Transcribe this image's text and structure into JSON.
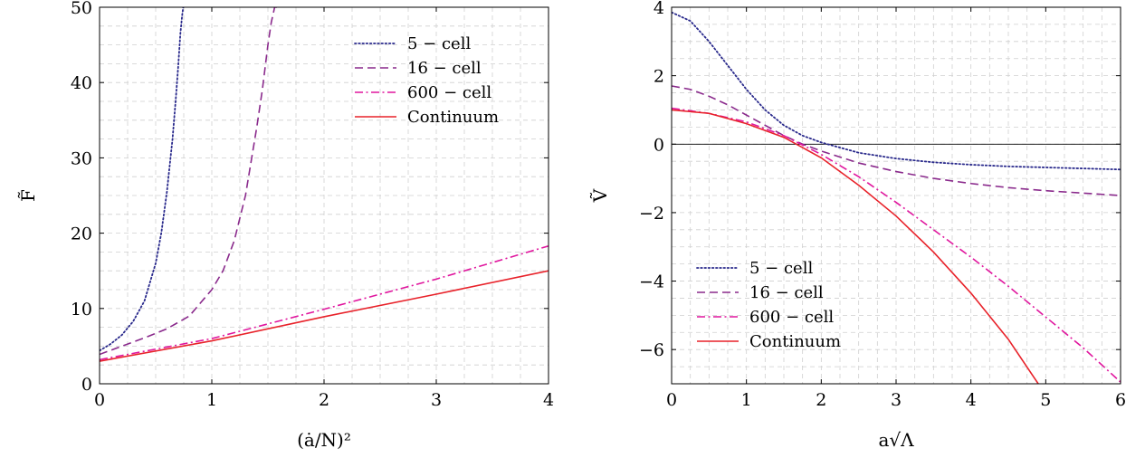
{
  "chart_data": [
    {
      "type": "line",
      "title": "",
      "xlabel": "(ȧ/N)²",
      "ylabel": "F̃",
      "xlim": [
        0,
        4
      ],
      "ylim": [
        0,
        50
      ],
      "xticks": [
        "0",
        "1",
        "2",
        "3",
        "4"
      ],
      "yticks": [
        "0",
        "10",
        "20",
        "30",
        "40",
        "50"
      ],
      "grid": true,
      "legend_position": "top-right",
      "series": [
        {
          "name": "5 − cell",
          "color": "#2a2a8c",
          "style": "dotted",
          "x": [
            0,
            0.1,
            0.2,
            0.3,
            0.4,
            0.5,
            0.55,
            0.6,
            0.65,
            0.68,
            0.7,
            0.72,
            0.735,
            0.745,
            0.75
          ],
          "y": [
            4.4,
            5.3,
            6.5,
            8.3,
            11.0,
            16.0,
            20.0,
            25.5,
            32.5,
            38.0,
            42.0,
            46.5,
            48.8,
            50,
            50
          ]
        },
        {
          "name": "16 − cell",
          "color": "#8a2a8c",
          "style": "dashed",
          "x": [
            0,
            0.2,
            0.4,
            0.6,
            0.8,
            1.0,
            1.1,
            1.2,
            1.3,
            1.4,
            1.45,
            1.5,
            1.53,
            1.56,
            1.58
          ],
          "y": [
            3.9,
            5.0,
            6.1,
            7.3,
            9.0,
            12.5,
            15.0,
            19.0,
            25.0,
            34.0,
            39.0,
            45.0,
            48.0,
            50,
            50
          ]
        },
        {
          "name": "600 − cell",
          "color": "#e0169e",
          "style": "dashdot",
          "x": [
            0,
            1,
            2,
            3,
            4
          ],
          "y": [
            3.2,
            6.0,
            9.9,
            13.9,
            18.3
          ]
        },
        {
          "name": "Continuum",
          "color": "#e8222a",
          "style": "solid",
          "x": [
            0,
            1,
            2,
            3,
            4
          ],
          "y": [
            3.0,
            5.7,
            8.9,
            11.9,
            15.0
          ]
        }
      ]
    },
    {
      "type": "line",
      "title": "",
      "xlabel": "a√Λ",
      "ylabel": "Ṽ",
      "xlim": [
        0,
        6
      ],
      "ylim": [
        -7,
        4
      ],
      "xticks": [
        "0",
        "1",
        "2",
        "3",
        "4",
        "5",
        "6"
      ],
      "yticks": [
        "−6",
        "−4",
        "−2",
        "0",
        "2",
        "4"
      ],
      "grid": true,
      "zero_line": true,
      "legend_position": "bottom-left",
      "series": [
        {
          "name": "5 − cell",
          "color": "#2a2a8c",
          "style": "dotted",
          "x": [
            0,
            0.25,
            0.5,
            0.75,
            1.0,
            1.25,
            1.5,
            1.75,
            2.0,
            2.5,
            3.0,
            3.5,
            4.0,
            4.5,
            5.0,
            5.5,
            6.0
          ],
          "y": [
            3.85,
            3.6,
            3.0,
            2.3,
            1.6,
            1.0,
            0.55,
            0.25,
            0.05,
            -0.25,
            -0.42,
            -0.53,
            -0.6,
            -0.65,
            -0.68,
            -0.71,
            -0.74
          ]
        },
        {
          "name": "16 − cell",
          "color": "#8a2a8c",
          "style": "dashed",
          "x": [
            0,
            0.25,
            0.5,
            0.75,
            1.0,
            1.25,
            1.5,
            1.75,
            2.0,
            2.5,
            3.0,
            3.5,
            4.0,
            4.5,
            5.0,
            5.5,
            6.0
          ],
          "y": [
            1.7,
            1.6,
            1.4,
            1.15,
            0.85,
            0.55,
            0.25,
            0.0,
            -0.2,
            -0.55,
            -0.8,
            -1.0,
            -1.15,
            -1.27,
            -1.36,
            -1.43,
            -1.5
          ]
        },
        {
          "name": "600 − cell",
          "color": "#e0169e",
          "style": "dashdot",
          "x": [
            0,
            0.5,
            1.0,
            1.5,
            2.0,
            2.5,
            3.0,
            3.5,
            4.0,
            4.5,
            5.0,
            5.5,
            6.0
          ],
          "y": [
            1.05,
            0.9,
            0.65,
            0.25,
            -0.3,
            -0.95,
            -1.7,
            -2.5,
            -3.3,
            -4.15,
            -5.05,
            -5.95,
            -6.95
          ]
        },
        {
          "name": "Continuum",
          "color": "#e8222a",
          "style": "solid",
          "x": [
            0,
            0.5,
            1.0,
            1.5,
            2.0,
            2.5,
            3.0,
            3.5,
            4.0,
            4.5,
            4.9
          ],
          "y": [
            1.0,
            0.9,
            0.6,
            0.2,
            -0.4,
            -1.2,
            -2.1,
            -3.15,
            -4.35,
            -5.7,
            -7.0
          ]
        }
      ]
    }
  ]
}
